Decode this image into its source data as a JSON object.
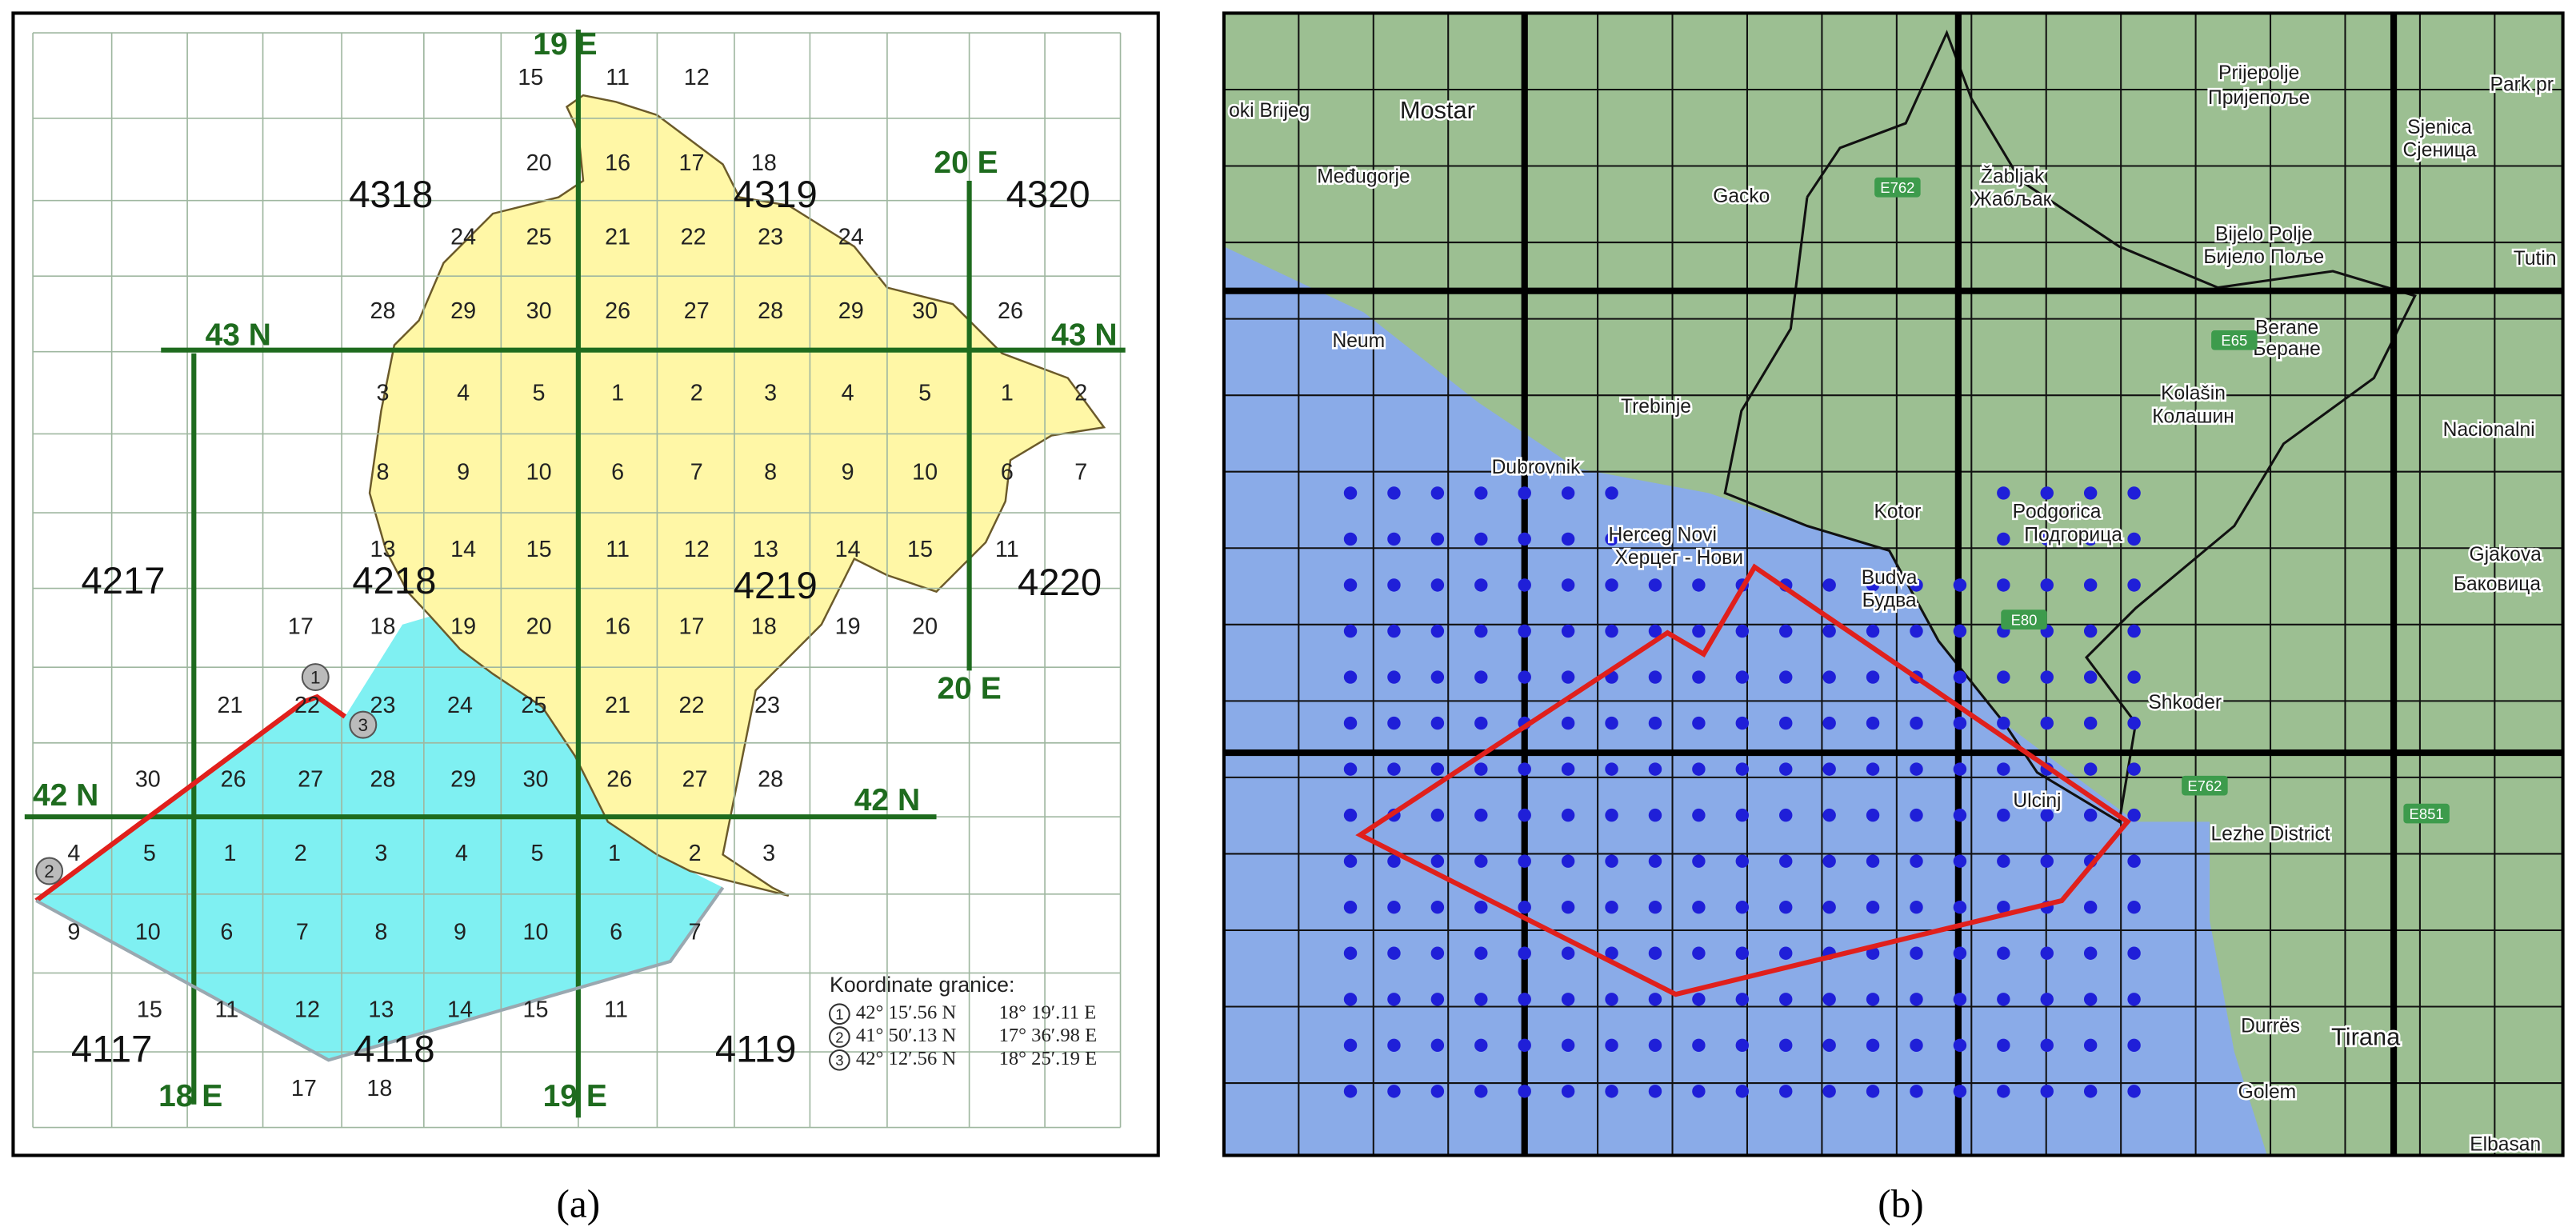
{
  "panel_a": {
    "caption": "(a)",
    "sheet_labels": [
      "4318",
      "4319",
      "4320",
      "4217",
      "4218",
      "4219",
      "4220",
      "4117",
      "4118",
      "4119"
    ],
    "axis_labels": [
      "19 E",
      "20 E",
      "43 N",
      "43 N",
      "20 E",
      "42 N",
      "42 N",
      "18 E",
      "19 E"
    ],
    "grid_rows": [
      [
        "15",
        "11",
        "12"
      ],
      [
        "20",
        "16",
        "17",
        "18"
      ],
      [
        "24",
        "25",
        "21",
        "22",
        "23",
        "24"
      ],
      [
        "28",
        "29",
        "30",
        "26",
        "27",
        "28",
        "29",
        "30",
        "26"
      ],
      [
        "3",
        "4",
        "5",
        "1",
        "2",
        "3",
        "4",
        "5",
        "1",
        "2"
      ],
      [
        "8",
        "9",
        "10",
        "6",
        "7",
        "8",
        "9",
        "10",
        "6",
        "7"
      ],
      [
        "13",
        "14",
        "15",
        "11",
        "12",
        "13",
        "14",
        "15",
        "11"
      ],
      [
        "17",
        "18",
        "19",
        "20",
        "16",
        "17",
        "18",
        "19",
        "20"
      ],
      [
        "21",
        "22",
        "23",
        "24",
        "25",
        "21",
        "22",
        "23"
      ],
      [
        "30",
        "26",
        "27",
        "28",
        "29",
        "30",
        "26",
        "27",
        "28"
      ],
      [
        "4",
        "5",
        "1",
        "2",
        "3",
        "4",
        "5",
        "1",
        "2",
        "3"
      ],
      [
        "9",
        "10",
        "6",
        "7",
        "8",
        "9",
        "10",
        "6",
        "7"
      ],
      [
        "15",
        "11",
        "12",
        "13",
        "14",
        "15",
        "11"
      ],
      [
        "17",
        "18"
      ]
    ],
    "legend": {
      "title": "Koordinate granice:",
      "points": [
        {
          "n": "1",
          "lat": "42° 15′.56 N",
          "lon": "18° 19′.11 E"
        },
        {
          "n": "2",
          "lat": "41° 50′.13 N",
          "lon": "17° 36′.98 E"
        },
        {
          "n": "3",
          "lat": "42° 12′.56 N",
          "lon": "18° 25′.19 E"
        }
      ]
    }
  },
  "panel_b": {
    "caption": "(b)",
    "place_labels": [
      "oki Brijeg",
      "Mostar",
      "Prijepolje",
      "Пријепоље",
      "Međugorje",
      "Gacko",
      "Žabljak",
      "Жабљак",
      "Sjenica",
      "Сјеница",
      "Park pr",
      "Bijelo Polje",
      "Бијело Поље",
      "Tutin",
      "Neum",
      "Berane",
      "Беране",
      "Trebinje",
      "Kolašin",
      "Колашин",
      "Nacionalni",
      "Dubrovnik",
      "Podgorica",
      "Подгорица",
      "Herceg Novi",
      "Херцег - Нови",
      "Kotor",
      "Budva",
      "Будва",
      "Shkoder",
      "Ulcinj",
      "Lezhe District",
      "Gjakova",
      "Баковица",
      "Durrës",
      "Tirana",
      "Golem",
      "Elbasan"
    ],
    "road_labels": [
      "E762",
      "E65",
      "E80",
      "E762",
      "E851"
    ]
  }
}
